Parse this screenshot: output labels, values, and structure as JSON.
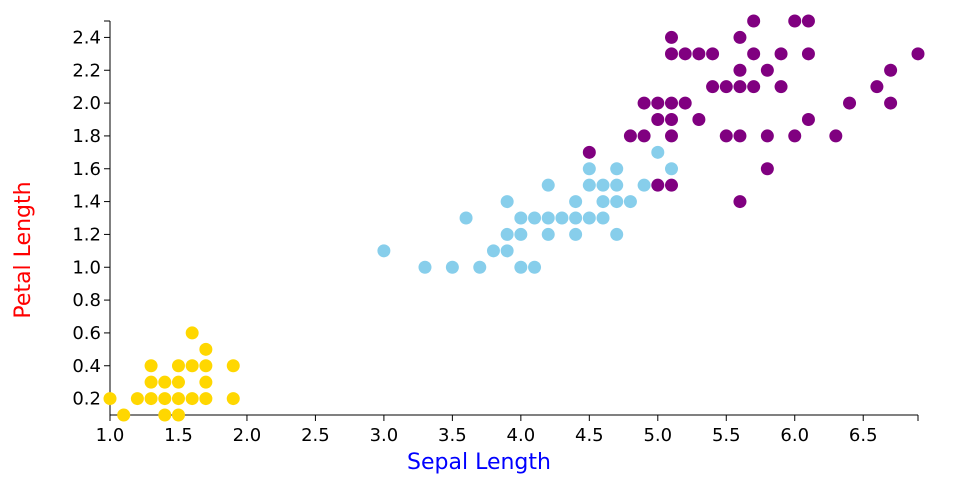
{
  "chart_data": {
    "type": "scatter",
    "xlabel": "Sepal Length",
    "ylabel": "Petal Length",
    "xlabel_color": "#0000ff",
    "ylabel_color": "#ff0000",
    "xlim": [
      1.0,
      6.9
    ],
    "ylim": [
      0.1,
      2.5
    ],
    "x_ticks": [
      "1.0",
      "1.5",
      "2.0",
      "2.5",
      "3.0",
      "3.5",
      "4.0",
      "4.5",
      "5.0",
      "5.5",
      "6.0",
      "6.5"
    ],
    "y_ticks": [
      "0.2",
      "0.4",
      "0.6",
      "0.8",
      "1.0",
      "1.2",
      "1.4",
      "1.6",
      "1.8",
      "2.0",
      "2.2",
      "2.4"
    ],
    "grid": false,
    "legend": "none",
    "series": [
      {
        "color": "#ffd700",
        "points": [
          [
            1.0,
            0.2
          ],
          [
            1.1,
            0.1
          ],
          [
            1.2,
            0.2
          ],
          [
            1.3,
            0.2
          ],
          [
            1.3,
            0.3
          ],
          [
            1.3,
            0.4
          ],
          [
            1.4,
            0.1
          ],
          [
            1.4,
            0.2
          ],
          [
            1.4,
            0.3
          ],
          [
            1.5,
            0.1
          ],
          [
            1.5,
            0.2
          ],
          [
            1.5,
            0.3
          ],
          [
            1.5,
            0.4
          ],
          [
            1.6,
            0.2
          ],
          [
            1.6,
            0.4
          ],
          [
            1.6,
            0.6
          ],
          [
            1.7,
            0.2
          ],
          [
            1.7,
            0.3
          ],
          [
            1.7,
            0.4
          ],
          [
            1.7,
            0.5
          ],
          [
            1.9,
            0.2
          ],
          [
            1.9,
            0.4
          ]
        ]
      },
      {
        "color": "#87ceeb",
        "points": [
          [
            3.0,
            1.1
          ],
          [
            3.3,
            1.0
          ],
          [
            3.5,
            1.0
          ],
          [
            3.6,
            1.3
          ],
          [
            3.7,
            1.0
          ],
          [
            3.8,
            1.1
          ],
          [
            3.9,
            1.1
          ],
          [
            3.9,
            1.2
          ],
          [
            3.9,
            1.4
          ],
          [
            4.0,
            1.0
          ],
          [
            4.0,
            1.2
          ],
          [
            4.0,
            1.3
          ],
          [
            4.1,
            1.0
          ],
          [
            4.1,
            1.3
          ],
          [
            4.2,
            1.2
          ],
          [
            4.2,
            1.3
          ],
          [
            4.2,
            1.5
          ],
          [
            4.3,
            1.3
          ],
          [
            4.4,
            1.2
          ],
          [
            4.4,
            1.3
          ],
          [
            4.4,
            1.4
          ],
          [
            4.5,
            1.3
          ],
          [
            4.5,
            1.5
          ],
          [
            4.5,
            1.6
          ],
          [
            4.6,
            1.3
          ],
          [
            4.6,
            1.4
          ],
          [
            4.6,
            1.5
          ],
          [
            4.7,
            1.2
          ],
          [
            4.7,
            1.4
          ],
          [
            4.7,
            1.5
          ],
          [
            4.7,
            1.6
          ],
          [
            4.8,
            1.4
          ],
          [
            4.9,
            1.5
          ],
          [
            5.0,
            1.7
          ],
          [
            5.1,
            1.6
          ]
        ]
      },
      {
        "color": "#800080",
        "points": [
          [
            4.5,
            1.7
          ],
          [
            4.8,
            1.8
          ],
          [
            4.9,
            1.8
          ],
          [
            4.9,
            2.0
          ],
          [
            5.0,
            1.5
          ],
          [
            5.0,
            1.9
          ],
          [
            5.0,
            2.0
          ],
          [
            5.1,
            1.5
          ],
          [
            5.1,
            1.8
          ],
          [
            5.1,
            1.9
          ],
          [
            5.1,
            2.0
          ],
          [
            5.1,
            2.3
          ],
          [
            5.1,
            2.4
          ],
          [
            5.2,
            2.0
          ],
          [
            5.2,
            2.3
          ],
          [
            5.3,
            1.9
          ],
          [
            5.3,
            2.3
          ],
          [
            5.4,
            2.1
          ],
          [
            5.4,
            2.3
          ],
          [
            5.5,
            1.8
          ],
          [
            5.5,
            2.1
          ],
          [
            5.6,
            1.4
          ],
          [
            5.6,
            1.8
          ],
          [
            5.6,
            2.1
          ],
          [
            5.6,
            2.2
          ],
          [
            5.6,
            2.4
          ],
          [
            5.7,
            2.1
          ],
          [
            5.7,
            2.3
          ],
          [
            5.7,
            2.5
          ],
          [
            5.8,
            1.6
          ],
          [
            5.8,
            1.8
          ],
          [
            5.8,
            2.2
          ],
          [
            5.9,
            2.1
          ],
          [
            5.9,
            2.3
          ],
          [
            6.0,
            1.8
          ],
          [
            6.0,
            2.5
          ],
          [
            6.1,
            1.9
          ],
          [
            6.1,
            2.3
          ],
          [
            6.1,
            2.5
          ],
          [
            6.3,
            1.8
          ],
          [
            6.4,
            2.0
          ],
          [
            6.6,
            2.1
          ],
          [
            6.7,
            2.0
          ],
          [
            6.7,
            2.2
          ],
          [
            6.9,
            2.3
          ]
        ]
      }
    ]
  }
}
